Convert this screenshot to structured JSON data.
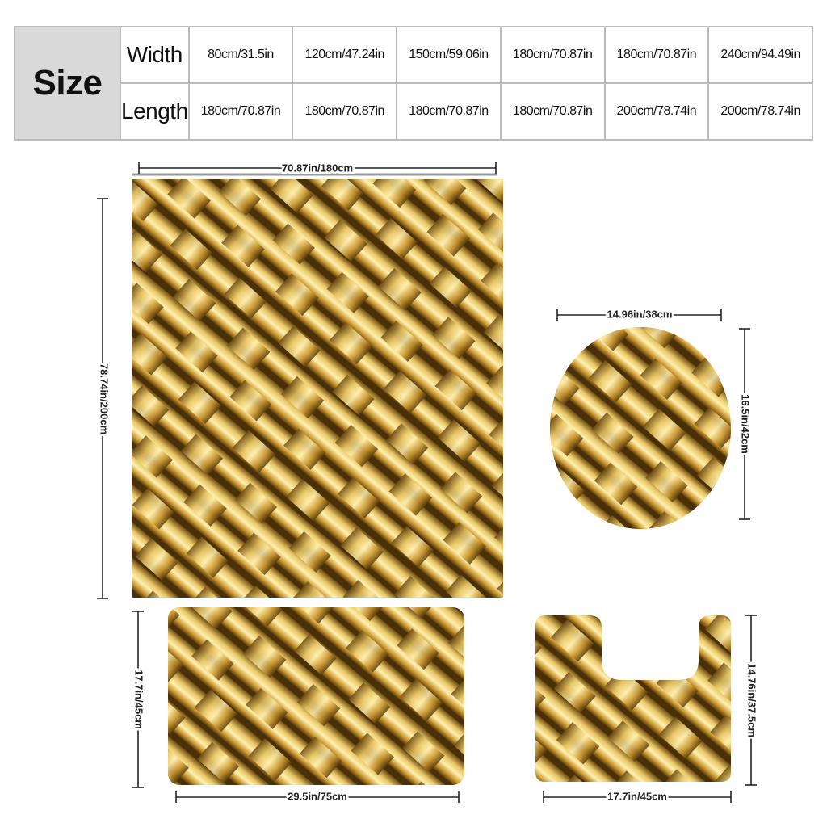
{
  "size_table": {
    "header": "Size",
    "rows": [
      {
        "label": "Width",
        "values": [
          "80cm/31.5in",
          "120cm/47.24in",
          "150cm/59.06in",
          "180cm/70.87in",
          "180cm/70.87in",
          "240cm/94.49in"
        ]
      },
      {
        "label": "Length",
        "values": [
          "180cm/70.87in",
          "180cm/70.87in",
          "180cm/70.87in",
          "180cm/70.87in",
          "200cm/78.74in",
          "200cm/78.74in"
        ]
      }
    ]
  },
  "dimensions": {
    "curtain_width": "70.87in/180cm",
    "curtain_height": "78.74in/200cm",
    "lid_width": "14.96in/38cm",
    "lid_height": "16.5in/42cm",
    "bath_mat_height": "17.7in/45cm",
    "bath_mat_width": "29.5in/75cm",
    "contour_mat_height": "14.76in/37.5cm",
    "contour_mat_width": "17.7in/45cm"
  }
}
